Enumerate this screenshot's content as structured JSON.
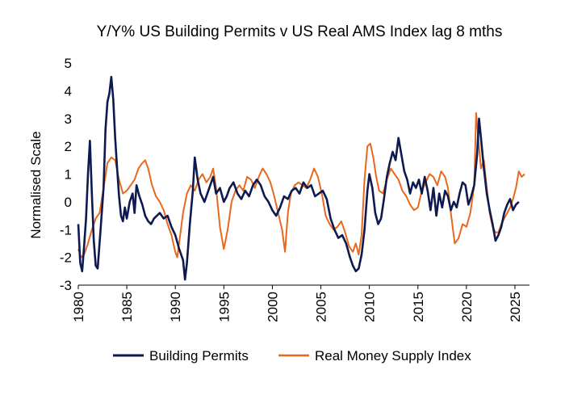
{
  "chart_data": {
    "type": "line",
    "title": "Y/Y% US Building Permits v US Real AMS Index lag 8 mths",
    "xlabel": "",
    "ylabel": "Normalised Scale",
    "xlim": [
      1980,
      2026.5
    ],
    "ylim": [
      -3,
      5
    ],
    "x_ticks": [
      1980,
      1985,
      1990,
      1995,
      2000,
      2005,
      2010,
      2015,
      2020,
      2025
    ],
    "y_ticks": [
      -3,
      -2,
      -1,
      0,
      1,
      2,
      3,
      4,
      5
    ],
    "grid": false,
    "legend_position": "bottom",
    "series": [
      {
        "name": "Building Permits",
        "color": "#0e1a4f",
        "points": [
          [
            1980.0,
            -0.8
          ],
          [
            1980.2,
            -2.2
          ],
          [
            1980.4,
            -2.5
          ],
          [
            1980.6,
            -1.6
          ],
          [
            1980.8,
            -0.6
          ],
          [
            1981.0,
            1.0
          ],
          [
            1981.2,
            2.2
          ],
          [
            1981.4,
            0.3
          ],
          [
            1981.6,
            -1.4
          ],
          [
            1981.8,
            -2.3
          ],
          [
            1982.0,
            -2.4
          ],
          [
            1982.3,
            -1.0
          ],
          [
            1982.6,
            0.5
          ],
          [
            1982.8,
            2.6
          ],
          [
            1983.0,
            3.6
          ],
          [
            1983.2,
            3.9
          ],
          [
            1983.4,
            4.5
          ],
          [
            1983.6,
            3.7
          ],
          [
            1983.8,
            2.3
          ],
          [
            1984.0,
            1.2
          ],
          [
            1984.2,
            0.2
          ],
          [
            1984.4,
            -0.5
          ],
          [
            1984.6,
            -0.7
          ],
          [
            1984.8,
            -0.2
          ],
          [
            1985.0,
            -0.6
          ],
          [
            1985.3,
            0.0
          ],
          [
            1985.6,
            0.3
          ],
          [
            1985.8,
            -0.4
          ],
          [
            1986.0,
            0.6
          ],
          [
            1986.3,
            0.2
          ],
          [
            1986.6,
            -0.1
          ],
          [
            1986.9,
            -0.5
          ],
          [
            1987.2,
            -0.7
          ],
          [
            1987.5,
            -0.8
          ],
          [
            1987.8,
            -0.6
          ],
          [
            1988.1,
            -0.5
          ],
          [
            1988.4,
            -0.4
          ],
          [
            1988.8,
            -0.6
          ],
          [
            1989.2,
            -0.5
          ],
          [
            1989.6,
            -0.9
          ],
          [
            1990.0,
            -1.2
          ],
          [
            1990.4,
            -1.7
          ],
          [
            1990.8,
            -2.1
          ],
          [
            1991.0,
            -2.8
          ],
          [
            1991.2,
            -2.2
          ],
          [
            1991.5,
            -0.8
          ],
          [
            1991.8,
            0.4
          ],
          [
            1992.0,
            1.6
          ],
          [
            1992.3,
            0.8
          ],
          [
            1992.6,
            0.3
          ],
          [
            1993.0,
            0.0
          ],
          [
            1993.3,
            0.3
          ],
          [
            1993.6,
            0.6
          ],
          [
            1993.9,
            0.9
          ],
          [
            1994.2,
            0.3
          ],
          [
            1994.6,
            0.5
          ],
          [
            1995.0,
            0.0
          ],
          [
            1995.3,
            0.2
          ],
          [
            1995.6,
            0.5
          ],
          [
            1996.0,
            0.7
          ],
          [
            1996.4,
            0.3
          ],
          [
            1996.8,
            0.1
          ],
          [
            1997.2,
            0.4
          ],
          [
            1997.6,
            0.2
          ],
          [
            1998.0,
            0.6
          ],
          [
            1998.4,
            0.8
          ],
          [
            1998.8,
            0.6
          ],
          [
            1999.2,
            0.2
          ],
          [
            1999.6,
            0.0
          ],
          [
            2000.0,
            -0.3
          ],
          [
            2000.4,
            -0.5
          ],
          [
            2000.8,
            -0.2
          ],
          [
            2001.2,
            0.2
          ],
          [
            2001.6,
            0.1
          ],
          [
            2002.0,
            0.4
          ],
          [
            2002.4,
            0.5
          ],
          [
            2002.8,
            0.3
          ],
          [
            2003.2,
            0.7
          ],
          [
            2003.6,
            0.5
          ],
          [
            2004.0,
            0.6
          ],
          [
            2004.4,
            0.2
          ],
          [
            2004.8,
            0.3
          ],
          [
            2005.2,
            0.4
          ],
          [
            2005.6,
            0.1
          ],
          [
            2006.0,
            -0.6
          ],
          [
            2006.4,
            -1.0
          ],
          [
            2006.8,
            -1.3
          ],
          [
            2007.2,
            -1.2
          ],
          [
            2007.6,
            -1.5
          ],
          [
            2008.0,
            -2.0
          ],
          [
            2008.3,
            -2.3
          ],
          [
            2008.6,
            -2.5
          ],
          [
            2008.9,
            -2.4
          ],
          [
            2009.2,
            -1.9
          ],
          [
            2009.5,
            -1.0
          ],
          [
            2009.8,
            0.4
          ],
          [
            2010.0,
            1.0
          ],
          [
            2010.3,
            0.5
          ],
          [
            2010.6,
            -0.4
          ],
          [
            2010.9,
            -0.8
          ],
          [
            2011.2,
            -0.6
          ],
          [
            2011.5,
            0.1
          ],
          [
            2011.8,
            0.9
          ],
          [
            2012.1,
            1.4
          ],
          [
            2012.4,
            1.8
          ],
          [
            2012.7,
            1.5
          ],
          [
            2013.0,
            2.3
          ],
          [
            2013.3,
            1.7
          ],
          [
            2013.6,
            1.1
          ],
          [
            2013.9,
            0.8
          ],
          [
            2014.2,
            0.3
          ],
          [
            2014.5,
            0.7
          ],
          [
            2014.8,
            0.5
          ],
          [
            2015.1,
            0.8
          ],
          [
            2015.4,
            0.3
          ],
          [
            2015.7,
            0.9
          ],
          [
            2016.0,
            0.4
          ],
          [
            2016.3,
            -0.3
          ],
          [
            2016.6,
            0.5
          ],
          [
            2016.9,
            -0.5
          ],
          [
            2017.2,
            0.3
          ],
          [
            2017.5,
            -0.2
          ],
          [
            2017.8,
            0.4
          ],
          [
            2018.1,
            0.2
          ],
          [
            2018.4,
            -0.3
          ],
          [
            2018.7,
            0.0
          ],
          [
            2019.0,
            -0.2
          ],
          [
            2019.3,
            0.3
          ],
          [
            2019.6,
            0.7
          ],
          [
            2019.9,
            0.6
          ],
          [
            2020.2,
            -0.1
          ],
          [
            2020.5,
            0.2
          ],
          [
            2020.8,
            0.6
          ],
          [
            2021.1,
            1.7
          ],
          [
            2021.3,
            3.0
          ],
          [
            2021.5,
            2.3
          ],
          [
            2021.8,
            1.2
          ],
          [
            2022.1,
            0.3
          ],
          [
            2022.4,
            -0.3
          ],
          [
            2022.7,
            -0.8
          ],
          [
            2023.0,
            -1.4
          ],
          [
            2023.3,
            -1.2
          ],
          [
            2023.6,
            -0.9
          ],
          [
            2023.9,
            -0.4
          ],
          [
            2024.2,
            -0.1
          ],
          [
            2024.5,
            0.1
          ],
          [
            2024.8,
            -0.3
          ],
          [
            2025.1,
            -0.1
          ],
          [
            2025.4,
            0.0
          ]
        ]
      },
      {
        "name": "Real Money Supply Index",
        "color": "#e8681e",
        "points": [
          [
            1980.0,
            -1.7
          ],
          [
            1980.3,
            -2.0
          ],
          [
            1980.6,
            -1.9
          ],
          [
            1981.0,
            -1.5
          ],
          [
            1981.4,
            -1.0
          ],
          [
            1981.8,
            -0.6
          ],
          [
            1982.2,
            -0.4
          ],
          [
            1982.6,
            0.5
          ],
          [
            1983.0,
            1.4
          ],
          [
            1983.4,
            1.6
          ],
          [
            1983.8,
            1.5
          ],
          [
            1984.2,
            0.8
          ],
          [
            1984.6,
            0.3
          ],
          [
            1985.0,
            0.4
          ],
          [
            1985.4,
            0.6
          ],
          [
            1985.8,
            0.8
          ],
          [
            1986.2,
            1.2
          ],
          [
            1986.6,
            1.4
          ],
          [
            1986.9,
            1.5
          ],
          [
            1987.2,
            1.2
          ],
          [
            1987.6,
            0.6
          ],
          [
            1988.0,
            0.2
          ],
          [
            1988.4,
            0.0
          ],
          [
            1988.8,
            -0.3
          ],
          [
            1989.2,
            -0.8
          ],
          [
            1989.6,
            -1.2
          ],
          [
            1990.0,
            -1.8
          ],
          [
            1990.2,
            -2.0
          ],
          [
            1990.5,
            -1.2
          ],
          [
            1990.8,
            -0.4
          ],
          [
            1991.2,
            0.3
          ],
          [
            1991.6,
            0.6
          ],
          [
            1992.0,
            0.4
          ],
          [
            1992.4,
            0.8
          ],
          [
            1992.8,
            1.0
          ],
          [
            1993.2,
            0.7
          ],
          [
            1993.6,
            0.9
          ],
          [
            1993.9,
            1.2
          ],
          [
            1994.2,
            0.5
          ],
          [
            1994.6,
            -0.9
          ],
          [
            1995.0,
            -1.7
          ],
          [
            1995.4,
            -1.0
          ],
          [
            1995.8,
            0.0
          ],
          [
            1996.2,
            0.4
          ],
          [
            1996.6,
            0.6
          ],
          [
            1997.0,
            0.4
          ],
          [
            1997.4,
            0.9
          ],
          [
            1997.8,
            0.8
          ],
          [
            1998.2,
            0.5
          ],
          [
            1998.6,
            0.9
          ],
          [
            1999.0,
            1.2
          ],
          [
            1999.4,
            1.0
          ],
          [
            1999.8,
            0.7
          ],
          [
            2000.2,
            0.2
          ],
          [
            2000.6,
            -0.4
          ],
          [
            2001.0,
            -1.0
          ],
          [
            2001.3,
            -1.8
          ],
          [
            2001.6,
            -0.4
          ],
          [
            2001.9,
            0.3
          ],
          [
            2002.3,
            0.6
          ],
          [
            2002.7,
            0.7
          ],
          [
            2003.1,
            0.6
          ],
          [
            2003.5,
            0.5
          ],
          [
            2003.9,
            0.8
          ],
          [
            2004.3,
            1.2
          ],
          [
            2004.7,
            0.9
          ],
          [
            2005.1,
            0.3
          ],
          [
            2005.5,
            -0.5
          ],
          [
            2005.9,
            -0.8
          ],
          [
            2006.3,
            -1.0
          ],
          [
            2006.7,
            -0.9
          ],
          [
            2007.1,
            -0.7
          ],
          [
            2007.5,
            -1.1
          ],
          [
            2007.9,
            -1.6
          ],
          [
            2008.3,
            -1.8
          ],
          [
            2008.6,
            -1.5
          ],
          [
            2008.9,
            -1.9
          ],
          [
            2009.2,
            -1.2
          ],
          [
            2009.5,
            0.8
          ],
          [
            2009.8,
            2.0
          ],
          [
            2010.1,
            2.1
          ],
          [
            2010.4,
            1.6
          ],
          [
            2010.7,
            0.9
          ],
          [
            2011.0,
            0.4
          ],
          [
            2011.4,
            0.3
          ],
          [
            2011.8,
            0.8
          ],
          [
            2012.2,
            1.2
          ],
          [
            2012.6,
            1.0
          ],
          [
            2013.0,
            0.8
          ],
          [
            2013.4,
            0.4
          ],
          [
            2013.8,
            0.2
          ],
          [
            2014.2,
            -0.1
          ],
          [
            2014.6,
            -0.3
          ],
          [
            2015.0,
            -0.2
          ],
          [
            2015.4,
            0.4
          ],
          [
            2015.8,
            0.7
          ],
          [
            2016.2,
            1.0
          ],
          [
            2016.6,
            0.9
          ],
          [
            2017.0,
            0.6
          ],
          [
            2017.4,
            1.1
          ],
          [
            2017.8,
            0.9
          ],
          [
            2018.1,
            0.5
          ],
          [
            2018.4,
            -0.4
          ],
          [
            2018.8,
            -1.5
          ],
          [
            2019.2,
            -1.3
          ],
          [
            2019.6,
            -0.8
          ],
          [
            2020.0,
            -0.9
          ],
          [
            2020.4,
            -0.4
          ],
          [
            2020.8,
            0.6
          ],
          [
            2021.0,
            3.2
          ],
          [
            2021.2,
            2.4
          ],
          [
            2021.5,
            1.2
          ],
          [
            2021.8,
            1.5
          ],
          [
            2022.1,
            0.5
          ],
          [
            2022.4,
            -0.4
          ],
          [
            2022.7,
            -0.9
          ],
          [
            2023.0,
            -1.1
          ],
          [
            2023.3,
            -1.1
          ],
          [
            2023.6,
            -0.8
          ],
          [
            2023.9,
            -0.6
          ],
          [
            2024.2,
            -0.4
          ],
          [
            2024.5,
            -0.2
          ],
          [
            2024.8,
            0.1
          ],
          [
            2025.1,
            0.5
          ],
          [
            2025.4,
            1.1
          ],
          [
            2025.7,
            0.9
          ],
          [
            2026.0,
            1.0
          ]
        ]
      }
    ]
  }
}
